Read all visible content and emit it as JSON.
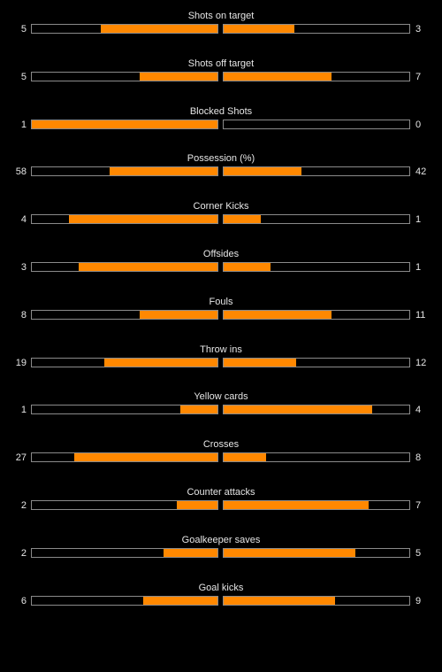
{
  "colors": {
    "accent": "#ff8800",
    "background": "#000000",
    "bar_border": "#8a8a8a",
    "text": "#e6e6e6"
  },
  "stats": [
    {
      "label": "Shots on target",
      "home": "5",
      "away": "3",
      "home_fill": 0.63,
      "away_fill": 0.38
    },
    {
      "label": "Shots off target",
      "home": "5",
      "away": "7",
      "home_fill": 0.42,
      "away_fill": 0.58
    },
    {
      "label": "Blocked Shots",
      "home": "1",
      "away": "0",
      "home_fill": 1.0,
      "away_fill": 0.0
    },
    {
      "label": "Possession (%)",
      "home": "58",
      "away": "42",
      "home_fill": 0.58,
      "away_fill": 0.42
    },
    {
      "label": "Corner Kicks",
      "home": "4",
      "away": "1",
      "home_fill": 0.8,
      "away_fill": 0.2
    },
    {
      "label": "Offsides",
      "home": "3",
      "away": "1",
      "home_fill": 0.75,
      "away_fill": 0.25
    },
    {
      "label": "Fouls",
      "home": "8",
      "away": "11",
      "home_fill": 0.42,
      "away_fill": 0.58
    },
    {
      "label": "Throw ins",
      "home": "19",
      "away": "12",
      "home_fill": 0.61,
      "away_fill": 0.39
    },
    {
      "label": "Yellow cards",
      "home": "1",
      "away": "4",
      "home_fill": 0.2,
      "away_fill": 0.8
    },
    {
      "label": "Crosses",
      "home": "27",
      "away": "8",
      "home_fill": 0.77,
      "away_fill": 0.23
    },
    {
      "label": "Counter attacks",
      "home": "2",
      "away": "7",
      "home_fill": 0.22,
      "away_fill": 0.78
    },
    {
      "label": "Goalkeeper saves",
      "home": "2",
      "away": "5",
      "home_fill": 0.29,
      "away_fill": 0.71
    },
    {
      "label": "Goal kicks",
      "home": "6",
      "away": "9",
      "home_fill": 0.4,
      "away_fill": 0.6
    }
  ]
}
